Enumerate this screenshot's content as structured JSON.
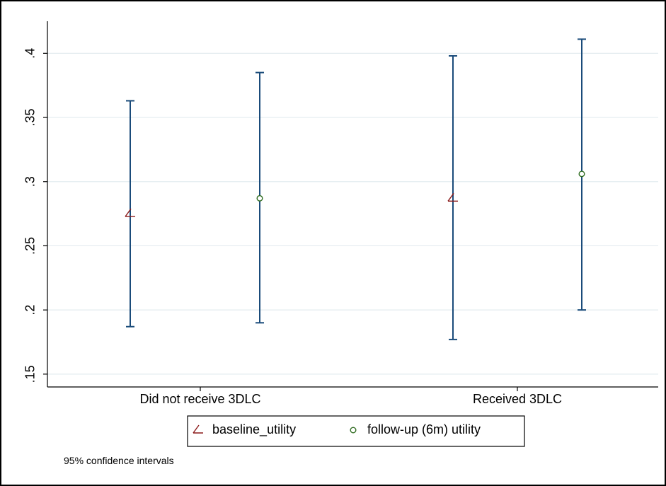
{
  "chart_data": {
    "type": "errorbar",
    "categories": [
      "Did not receive 3DLC",
      "Received 3DLC"
    ],
    "y_ticks": [
      0.15,
      0.2,
      0.25,
      0.3,
      0.35,
      0.4
    ],
    "y_tick_labels": [
      ".15",
      ".2",
      ".25",
      ".3",
      ".35",
      ".4"
    ],
    "ylim": [
      0.14,
      0.425
    ],
    "grid": true,
    "legend_position": "bottom",
    "series": [
      {
        "name": "baseline_utility",
        "marker": "triangle-icon",
        "color": "#8b1a1a",
        "values": [
          0.275,
          0.287
        ],
        "ci_low": [
          0.187,
          0.177
        ],
        "ci_high": [
          0.363,
          0.398
        ]
      },
      {
        "name": "follow-up (6m) utility",
        "marker": "circle-icon",
        "color": "#2e6b1f",
        "values": [
          0.287,
          0.306
        ],
        "ci_low": [
          0.19,
          0.2
        ],
        "ci_high": [
          0.385,
          0.411
        ]
      }
    ],
    "errorbar_color": "#1a4b7a",
    "note": "95% confidence intervals"
  }
}
